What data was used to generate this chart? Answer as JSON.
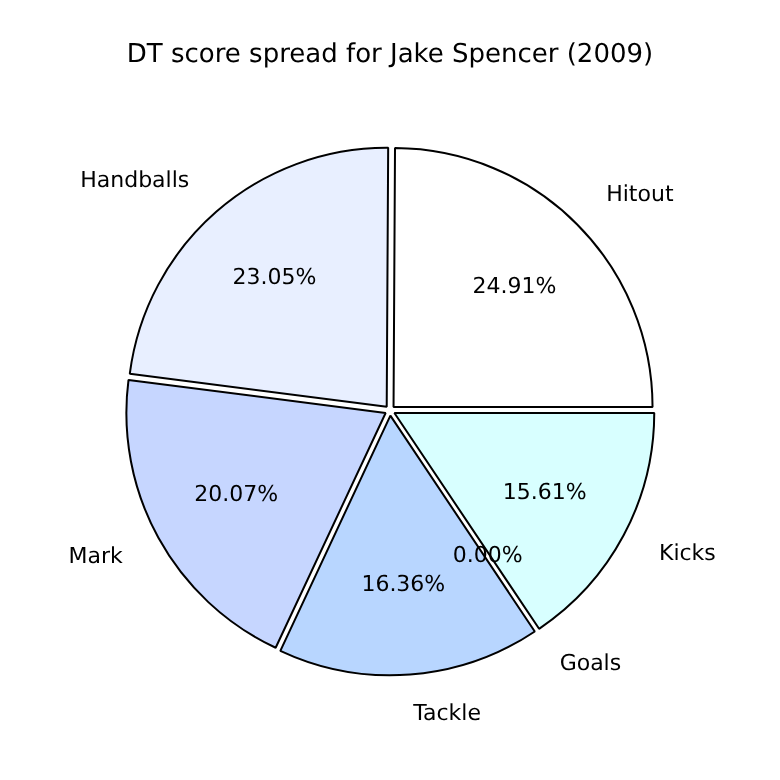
{
  "chart_data": {
    "type": "pie",
    "title": "DT score spread for Jake Spencer (2009)",
    "categories": [
      "Hitout",
      "Handballs",
      "Mark",
      "Tackle",
      "Goals",
      "Kicks"
    ],
    "values": [
      24.91,
      23.05,
      20.07,
      16.36,
      0.0,
      15.61
    ],
    "colors": [
      "#ffffff",
      "#e8efff",
      "#c6d6ff",
      "#b8d6ff",
      "#ccf0ff",
      "#d8ffff"
    ],
    "value_labels": [
      "24.91%",
      "23.05%",
      "20.07%",
      "16.36%",
      "0.00%",
      "15.61%"
    ],
    "legend": false
  }
}
